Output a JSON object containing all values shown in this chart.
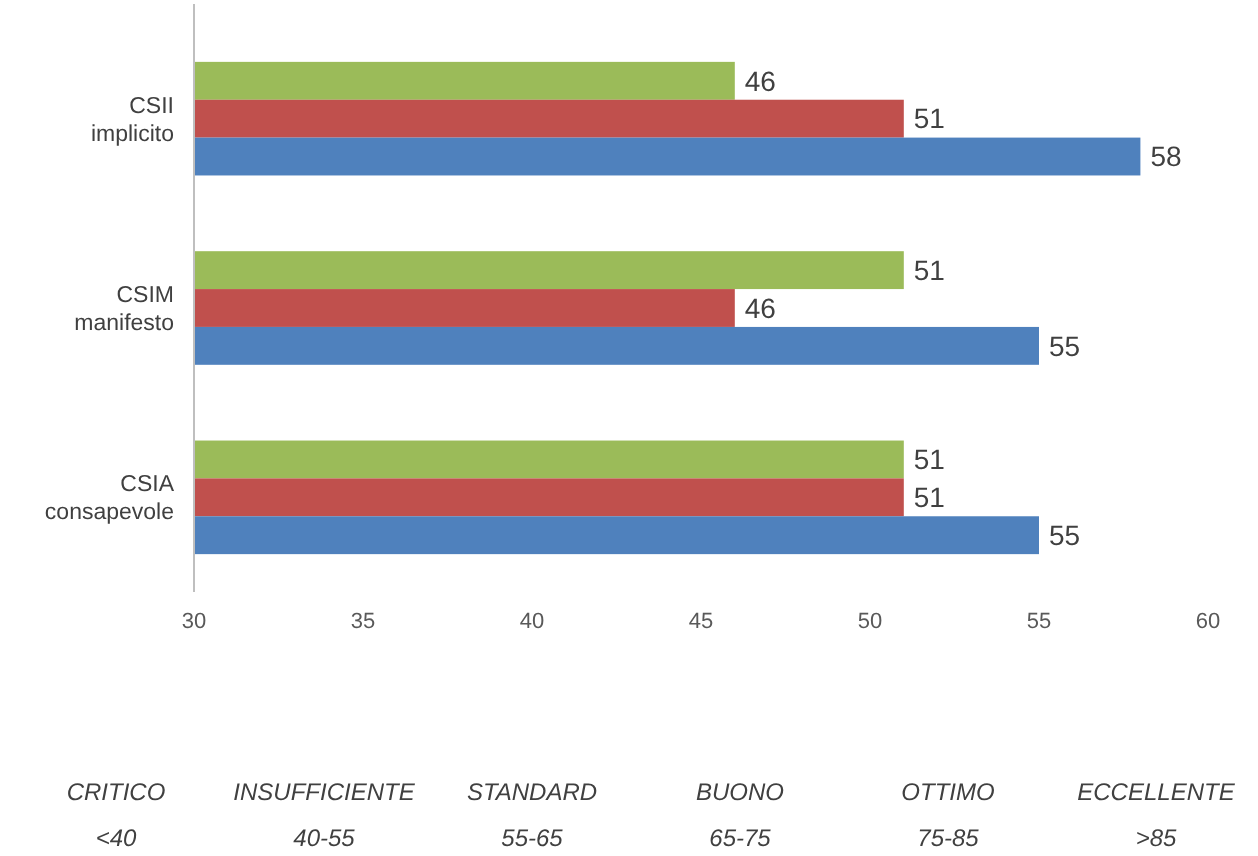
{
  "chart_data": {
    "type": "bar",
    "orientation": "horizontal",
    "categories": [
      "CSII\nimplicito",
      "CSIM\nmanifesto",
      "CSIA\nconsapevole"
    ],
    "series": [
      {
        "color": "#9bbb59",
        "values": [
          46,
          51,
          51
        ]
      },
      {
        "color": "#c0504d",
        "values": [
          51,
          46,
          51
        ]
      },
      {
        "color": "#4f81bd",
        "values": [
          58,
          55,
          55
        ]
      }
    ],
    "xlim": [
      30,
      60
    ],
    "xticks": [
      30,
      35,
      40,
      45,
      50,
      55,
      60
    ],
    "data_labels": true,
    "grid": false,
    "annotations": [
      "CRITICO",
      "INSUFFICIENTE",
      "STANDARD",
      "BUONO",
      "OTTIMO",
      "ECCELLENTE",
      "<40",
      "40-55",
      "55-65",
      "65-75",
      "75-85",
      ">85"
    ]
  }
}
